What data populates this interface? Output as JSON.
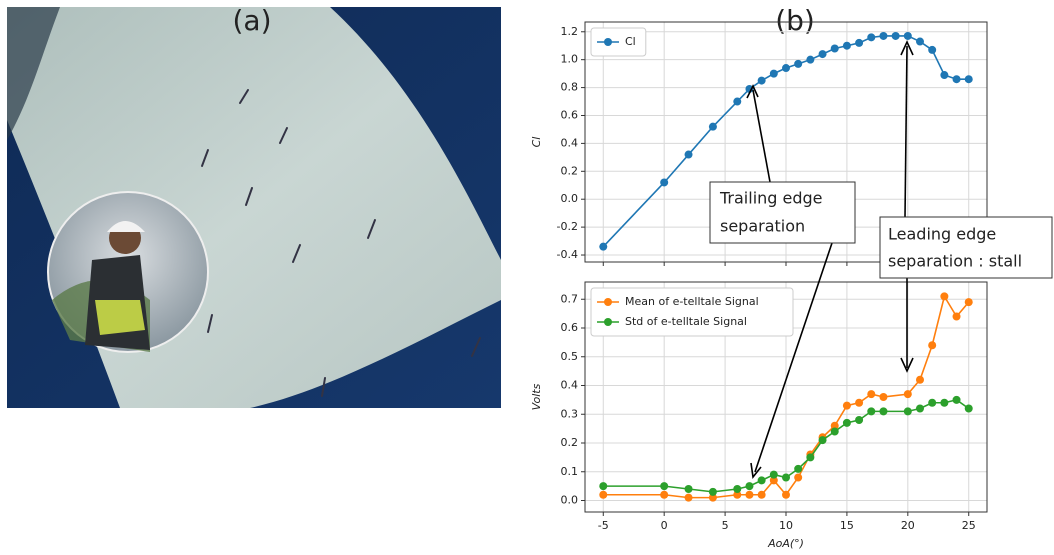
{
  "panel_labels": [
    "(a)",
    "(b)"
  ],
  "chart_data": [
    {
      "type": "line",
      "ylabel": "Cl",
      "x": [
        -5,
        0,
        2,
        4,
        6,
        7,
        8,
        9,
        10,
        11,
        12,
        13,
        14,
        15,
        16,
        17,
        18,
        19,
        20,
        21,
        22,
        23,
        24,
        25
      ],
      "series": [
        {
          "name": "Cl",
          "color": "#1f77b4",
          "values": [
            -0.34,
            0.12,
            0.32,
            0.52,
            0.7,
            0.79,
            0.85,
            0.9,
            0.94,
            0.97,
            1.0,
            1.04,
            1.08,
            1.1,
            1.12,
            1.16,
            1.17,
            1.17,
            1.17,
            1.13,
            1.07,
            0.89,
            0.86,
            0.86
          ]
        }
      ],
      "xlim": [
        -6.5,
        26.5
      ],
      "xticks": [
        -5,
        0,
        5,
        10,
        15,
        20,
        25
      ],
      "ylim": [
        -0.45,
        1.27
      ],
      "yticks": [
        -0.4,
        -0.2,
        {
          "value": 0,
          "label": "0.0"
        },
        0.2,
        0.4,
        0.6,
        0.8,
        {
          "value": 1,
          "label": "1.0"
        },
        1.2
      ],
      "grid": true,
      "legend": "upper left",
      "annotations": [
        [
          "Trailing edge",
          "separation"
        ],
        [
          "Leading edge",
          "separation : stall"
        ]
      ]
    },
    {
      "type": "line",
      "ylabel": "Volts",
      "xlabel": "AoA(°)",
      "x": [
        -5,
        0,
        2,
        4,
        6,
        7,
        8,
        9,
        10,
        11,
        12,
        13,
        14,
        15,
        16,
        17,
        18,
        20,
        21,
        22,
        23,
        24,
        25
      ],
      "series": [
        {
          "name": "Mean of e-telltale Signal",
          "color": "#ff7f0e",
          "values": [
            0.02,
            0.02,
            0.01,
            0.01,
            0.02,
            0.02,
            0.02,
            0.07,
            0.02,
            0.08,
            0.16,
            0.22,
            0.26,
            0.33,
            0.34,
            0.37,
            0.36,
            0.37,
            0.42,
            0.54,
            0.71,
            0.64,
            0.69
          ]
        },
        {
          "name": "Std of e-telltale Signal",
          "color": "#2ca02c",
          "values": [
            0.05,
            0.05,
            0.04,
            0.03,
            0.04,
            0.05,
            0.07,
            0.09,
            0.08,
            0.11,
            0.15,
            0.21,
            0.24,
            0.27,
            0.28,
            0.31,
            0.31,
            0.31,
            0.32,
            0.34,
            0.34,
            0.35,
            0.32
          ]
        }
      ],
      "xlim": [
        -6.5,
        26.5
      ],
      "xticks": [
        -5,
        0,
        5,
        10,
        15,
        20,
        25
      ],
      "ylim": [
        -0.04,
        0.76
      ],
      "yticks": [
        {
          "value": 0,
          "label": "0.0"
        },
        0.1,
        0.2,
        0.3,
        0.4,
        0.5,
        0.6,
        0.7
      ],
      "grid": true,
      "legend": "upper left"
    }
  ]
}
